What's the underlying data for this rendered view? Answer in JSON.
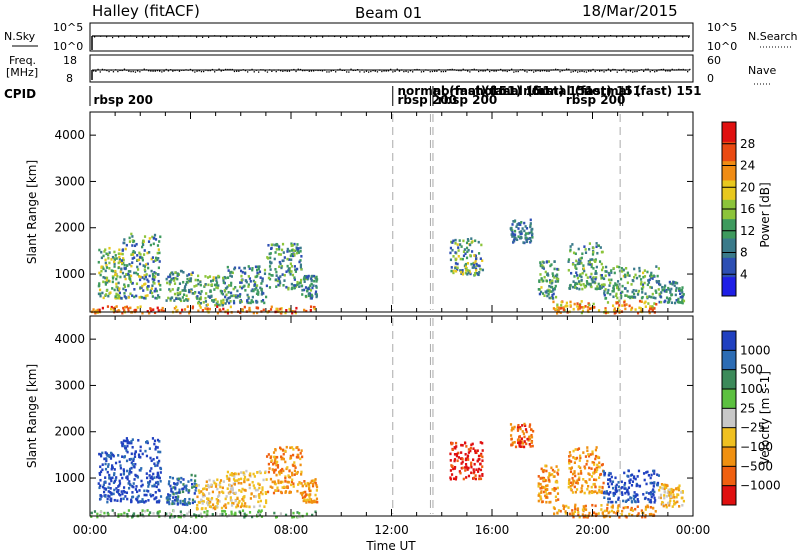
{
  "header": {
    "station": "Halley (fitACF)",
    "beam": "Beam 01",
    "date": "18/Mar/2015"
  },
  "top_panels": {
    "nsky_label": "N.Sky",
    "nsearch_label": "N.Search",
    "nsky_ticks": [
      "10^5",
      "10^0"
    ],
    "nsky_right_ticks": [
      "10^5",
      "10^0"
    ],
    "freq_label_line1": "Freq.",
    "freq_label_line2": "[MHz]",
    "freq_ticks": [
      "18",
      "8"
    ],
    "nave_label": "Nave",
    "nave_ticks": [
      "60",
      "0"
    ],
    "cpid_label": "CPID",
    "cpid_segments": [
      {
        "label": "rbsp 200",
        "start_hour": 0.1,
        "row": 1
      },
      {
        "label": "normal (fast) 151",
        "start_hour": 12.2,
        "row": 0
      },
      {
        "label": "rbsp 200",
        "start_hour": 12.2,
        "row": 1
      },
      {
        "label": "normal (fast) 151",
        "start_hour": 13.6,
        "row": 0
      },
      {
        "label": "rbsp 200",
        "start_hour": 13.8,
        "row": 1
      },
      {
        "label": "normal (fast) 151",
        "start_hour": 15.3,
        "row": 0
      },
      {
        "label": "normal (fast) 151",
        "start_hour": 17.2,
        "row": 0
      },
      {
        "label": "normal (fast) 151",
        "start_hour": 19.6,
        "row": 0
      },
      {
        "label": "rbsp 200",
        "start_hour": 18.9,
        "row": 1
      }
    ],
    "cpid_boundaries_hours": [
      12.05,
      13.55,
      13.65,
      21.1,
      21.2
    ]
  },
  "chart_data": [
    {
      "type": "heatmap",
      "name": "power",
      "xlabel": "",
      "ylabel": "Slant Range [km]",
      "xlim": [
        0,
        24
      ],
      "ylim": [
        180,
        4500
      ],
      "x_ticks": [
        "00:00",
        "04:00",
        "08:00",
        "12:00",
        "16:00",
        "20:00",
        "00:00"
      ],
      "x_tick_hours": [
        0,
        4,
        8,
        12,
        16,
        20,
        24
      ],
      "y_ticks": [
        1000,
        2000,
        3000,
        4000
      ],
      "colorbar": {
        "label": "Power [dB]",
        "range": [
          0,
          32
        ],
        "tick_values": [
          4,
          8,
          12,
          16,
          20,
          24,
          28
        ],
        "tick_labels": [
          "4",
          "8",
          "12",
          "16",
          "20",
          "24",
          "28"
        ],
        "colors": [
          "#1f1fe6",
          "#2d4fb3",
          "#3a7a8a",
          "#3e9a5e",
          "#8cc43a",
          "#e8c81e",
          "#f08c14",
          "#ea4a12",
          "#e01010"
        ]
      },
      "data_gaps_hours": [
        12.05,
        13.55,
        13.65,
        21.1
      ],
      "clusters": [
        {
          "t0": 0.3,
          "t1": 1.2,
          "r0": 500,
          "r1": 1600,
          "value": 14,
          "spread": 7
        },
        {
          "t0": 1.2,
          "t1": 2.8,
          "r0": 500,
          "r1": 1900,
          "value": 12,
          "spread": 8
        },
        {
          "t0": 3.0,
          "t1": 4.2,
          "r0": 450,
          "r1": 1100,
          "value": 12,
          "spread": 6
        },
        {
          "t0": 4.2,
          "t1": 5.4,
          "r0": 350,
          "r1": 1000,
          "value": 13,
          "spread": 7
        },
        {
          "t0": 5.4,
          "t1": 7.0,
          "r0": 400,
          "r1": 1200,
          "value": 10,
          "spread": 6
        },
        {
          "t0": 7.0,
          "t1": 8.4,
          "r0": 700,
          "r1": 1700,
          "value": 11,
          "spread": 6
        },
        {
          "t0": 8.4,
          "t1": 9.0,
          "r0": 500,
          "r1": 1000,
          "value": 10,
          "spread": 5
        },
        {
          "t0": 14.3,
          "t1": 15.6,
          "r0": 1000,
          "r1": 1800,
          "value": 12,
          "spread": 8
        },
        {
          "t0": 16.7,
          "t1": 17.6,
          "r0": 1700,
          "r1": 2200,
          "value": 8,
          "spread": 4
        },
        {
          "t0": 17.8,
          "t1": 18.6,
          "r0": 500,
          "r1": 1300,
          "value": 12,
          "spread": 6
        },
        {
          "t0": 19.0,
          "t1": 20.4,
          "r0": 700,
          "r1": 1700,
          "value": 12,
          "spread": 6
        },
        {
          "t0": 20.4,
          "t1": 22.6,
          "r0": 500,
          "r1": 1200,
          "value": 12,
          "spread": 6
        },
        {
          "t0": 22.6,
          "t1": 23.6,
          "r0": 400,
          "r1": 900,
          "value": 10,
          "spread": 5
        },
        {
          "t0": 0.0,
          "t1": 9.0,
          "r0": 180,
          "r1": 330,
          "value": 24,
          "spread": 6
        },
        {
          "t0": 18.4,
          "t1": 22.5,
          "r0": 180,
          "r1": 450,
          "value": 22,
          "spread": 6
        }
      ]
    },
    {
      "type": "heatmap",
      "name": "velocity",
      "xlabel": "Time UT",
      "ylabel": "Slant Range [km]",
      "xlim": [
        0,
        24
      ],
      "ylim": [
        180,
        4500
      ],
      "x_ticks": [
        "00:00",
        "04:00",
        "08:00",
        "12:00",
        "16:00",
        "20:00",
        "00:00"
      ],
      "x_tick_hours": [
        0,
        4,
        8,
        12,
        16,
        20,
        24
      ],
      "y_ticks": [
        1000,
        2000,
        3000,
        4000
      ],
      "colorbar": {
        "label": "Velocity [m s-1]",
        "tick_labels": [
          "1000",
          "500",
          "100",
          "25",
          "−25",
          "−100",
          "−500",
          "−1000"
        ],
        "colors": [
          "#2040c0",
          "#2c6cb4",
          "#3c8a5a",
          "#5cc040",
          "#c8c8c8",
          "#f0c020",
          "#f09010",
          "#f06010",
          "#e01010"
        ]
      },
      "data_gaps_hours": [
        12.05,
        13.55,
        13.65,
        21.1
      ],
      "clusters": [
        {
          "t0": 0.3,
          "t1": 1.2,
          "r0": 500,
          "r1": 1600,
          "class": 0
        },
        {
          "t0": 1.2,
          "t1": 2.8,
          "r0": 500,
          "r1": 1900,
          "class": 0
        },
        {
          "t0": 3.0,
          "t1": 4.2,
          "r0": 450,
          "r1": 1100,
          "class": 1
        },
        {
          "t0": 4.2,
          "t1": 5.4,
          "r0": 350,
          "r1": 1000,
          "class": 5
        },
        {
          "t0": 5.4,
          "t1": 7.0,
          "r0": 400,
          "r1": 1200,
          "class": 5
        },
        {
          "t0": 7.0,
          "t1": 8.4,
          "r0": 700,
          "r1": 1700,
          "class": 6
        },
        {
          "t0": 8.4,
          "t1": 9.0,
          "r0": 500,
          "r1": 1000,
          "class": 6
        },
        {
          "t0": 14.3,
          "t1": 15.6,
          "r0": 1000,
          "r1": 1800,
          "class": 8
        },
        {
          "t0": 16.7,
          "t1": 17.6,
          "r0": 1700,
          "r1": 2200,
          "class": 7
        },
        {
          "t0": 17.8,
          "t1": 18.6,
          "r0": 500,
          "r1": 1300,
          "class": 6
        },
        {
          "t0": 19.0,
          "t1": 20.4,
          "r0": 700,
          "r1": 1700,
          "class": 6
        },
        {
          "t0": 20.4,
          "t1": 22.6,
          "r0": 500,
          "r1": 1200,
          "class": 0
        },
        {
          "t0": 22.6,
          "t1": 23.6,
          "r0": 400,
          "r1": 900,
          "class": 5
        },
        {
          "t0": 0.0,
          "t1": 9.0,
          "r0": 180,
          "r1": 330,
          "class": 3
        },
        {
          "t0": 18.4,
          "t1": 22.5,
          "r0": 180,
          "r1": 450,
          "class": 6
        }
      ]
    }
  ]
}
